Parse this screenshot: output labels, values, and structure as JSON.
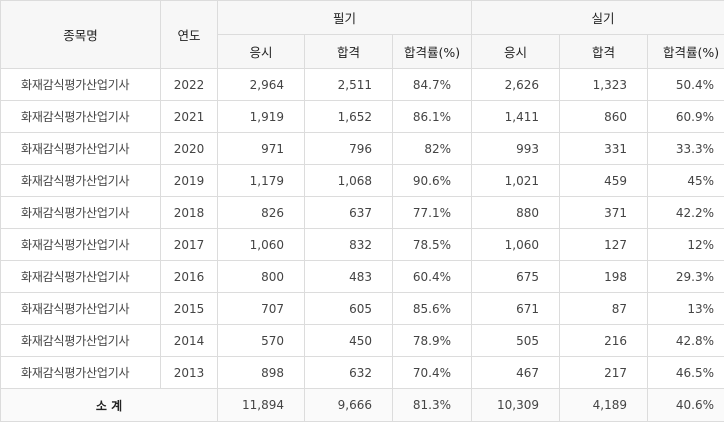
{
  "headers": {
    "item": "종목명",
    "year": "연도",
    "written": "필기",
    "practical": "실기",
    "applicants": "응시",
    "passed": "합격",
    "rate": "합격률(%)"
  },
  "rows": [
    {
      "name": "화재감식평가산업기사",
      "year": "2022",
      "w_app": "2,964",
      "w_pass": "2,511",
      "w_rate": "84.7%",
      "p_app": "2,626",
      "p_pass": "1,323",
      "p_rate": "50.4%"
    },
    {
      "name": "화재감식평가산업기사",
      "year": "2021",
      "w_app": "1,919",
      "w_pass": "1,652",
      "w_rate": "86.1%",
      "p_app": "1,411",
      "p_pass": "860",
      "p_rate": "60.9%"
    },
    {
      "name": "화재감식평가산업기사",
      "year": "2020",
      "w_app": "971",
      "w_pass": "796",
      "w_rate": "82%",
      "p_app": "993",
      "p_pass": "331",
      "p_rate": "33.3%"
    },
    {
      "name": "화재감식평가산업기사",
      "year": "2019",
      "w_app": "1,179",
      "w_pass": "1,068",
      "w_rate": "90.6%",
      "p_app": "1,021",
      "p_pass": "459",
      "p_rate": "45%"
    },
    {
      "name": "화재감식평가산업기사",
      "year": "2018",
      "w_app": "826",
      "w_pass": "637",
      "w_rate": "77.1%",
      "p_app": "880",
      "p_pass": "371",
      "p_rate": "42.2%"
    },
    {
      "name": "화재감식평가산업기사",
      "year": "2017",
      "w_app": "1,060",
      "w_pass": "832",
      "w_rate": "78.5%",
      "p_app": "1,060",
      "p_pass": "127",
      "p_rate": "12%"
    },
    {
      "name": "화재감식평가산업기사",
      "year": "2016",
      "w_app": "800",
      "w_pass": "483",
      "w_rate": "60.4%",
      "p_app": "675",
      "p_pass": "198",
      "p_rate": "29.3%"
    },
    {
      "name": "화재감식평가산업기사",
      "year": "2015",
      "w_app": "707",
      "w_pass": "605",
      "w_rate": "85.6%",
      "p_app": "671",
      "p_pass": "87",
      "p_rate": "13%"
    },
    {
      "name": "화재감식평가산업기사",
      "year": "2014",
      "w_app": "570",
      "w_pass": "450",
      "w_rate": "78.9%",
      "p_app": "505",
      "p_pass": "216",
      "p_rate": "42.8%"
    },
    {
      "name": "화재감식평가산업기사",
      "year": "2013",
      "w_app": "898",
      "w_pass": "632",
      "w_rate": "70.4%",
      "p_app": "467",
      "p_pass": "217",
      "p_rate": "46.5%"
    }
  ],
  "total": {
    "label": "소 계",
    "w_app": "11,894",
    "w_pass": "9,666",
    "w_rate": "81.3%",
    "p_app": "10,309",
    "p_pass": "4,189",
    "p_rate": "40.6%"
  }
}
